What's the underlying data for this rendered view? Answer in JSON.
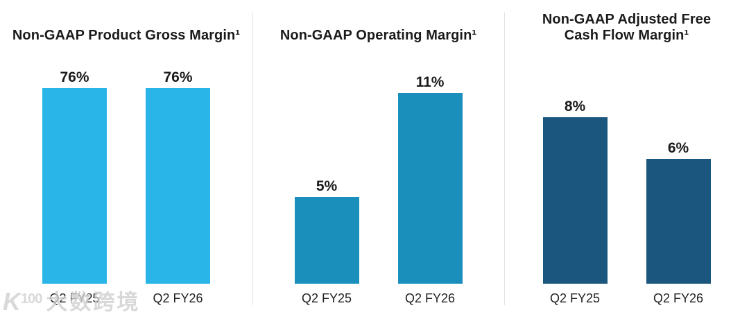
{
  "watermark": {
    "logo_text": "K",
    "logo_superscript": "100",
    "brand_text": "大数跨境"
  },
  "chart_data": [
    {
      "type": "bar",
      "title": "Non-GAAP Product Gross Margin¹",
      "title_lines": [
        "Non-GAAP Product Gross Margin¹"
      ],
      "categories": [
        "Q2 FY25",
        "Q2 FY26"
      ],
      "values": [
        76,
        76
      ],
      "value_labels": [
        "76%",
        "76%"
      ],
      "unit": "%",
      "ylim": [
        0,
        76
      ],
      "bar_color": "#29B5E8",
      "grid": false,
      "legend_position": "none",
      "axes_hidden": true
    },
    {
      "type": "bar",
      "title": "Non-GAAP Operating Margin¹",
      "title_lines": [
        "Non-GAAP Operating Margin¹"
      ],
      "categories": [
        "Q2 FY25",
        "Q2 FY26"
      ],
      "values": [
        5,
        11
      ],
      "value_labels": [
        "5%",
        "11%"
      ],
      "unit": "%",
      "ylim": [
        0,
        11.3
      ],
      "bar_color": "#1B8FBC",
      "grid": false,
      "legend_position": "none",
      "axes_hidden": true
    },
    {
      "type": "bar",
      "title": "Non-GAAP Adjusted Free Cash Flow Margin¹",
      "title_lines": [
        "Non-GAAP Adjusted Free",
        "Cash Flow Margin¹"
      ],
      "categories": [
        "Q2 FY25",
        "Q2 FY26"
      ],
      "values": [
        8,
        6
      ],
      "value_labels": [
        "8%",
        "6%"
      ],
      "unit": "%",
      "ylim": [
        0,
        9.4
      ],
      "bar_color": "#1B567F",
      "grid": false,
      "legend_position": "none",
      "axes_hidden": true
    }
  ]
}
